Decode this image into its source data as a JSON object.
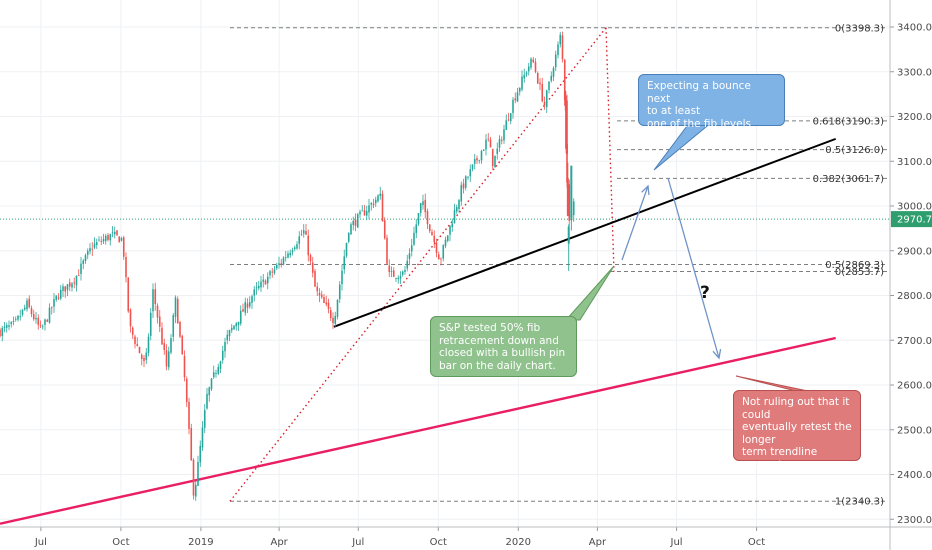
{
  "chart_data": {
    "type": "candlestick",
    "instrument": "S&P",
    "x_tick_labels": [
      "Jul",
      "Oct",
      "2019",
      "Apr",
      "Jul",
      "Oct",
      "2020",
      "Apr",
      "Jul",
      "Oct"
    ],
    "y_tick_labels": [
      "3400.0",
      "3300.0",
      "3200.0",
      "3100.0",
      "3000.0",
      "2900.0",
      "2800.0",
      "2700.0",
      "2600.0",
      "2500.0",
      "2400.0",
      "2300.0"
    ],
    "ylim": [
      2290,
      3415
    ],
    "current_price": "2970.7",
    "fib_levels": [
      {
        "label": "0(3398.3)",
        "value": 3398.3
      },
      {
        "label": "0.618(3190.3)",
        "value": 3190.3
      },
      {
        "label": "0.5(3126.0)",
        "value": 3126.0
      },
      {
        "label": "0.382(3061.7)",
        "value": 3061.7
      },
      {
        "label": "0.5(2869.3)",
        "value": 2869.3
      },
      {
        "label": "0(2853.7)",
        "value": 2853.7
      },
      {
        "label": "1(2340.3)",
        "value": 2340.3
      }
    ],
    "price_path": [
      {
        "date": "2018-05-15",
        "close": 2720
      },
      {
        "date": "2018-06-01",
        "close": 2735
      },
      {
        "date": "2018-06-15",
        "close": 2780
      },
      {
        "date": "2018-07-01",
        "close": 2720
      },
      {
        "date": "2018-07-20",
        "close": 2800
      },
      {
        "date": "2018-08-10",
        "close": 2840
      },
      {
        "date": "2018-08-29",
        "close": 2910
      },
      {
        "date": "2018-09-20",
        "close": 2935
      },
      {
        "date": "2018-10-03",
        "close": 2925
      },
      {
        "date": "2018-10-11",
        "close": 2730
      },
      {
        "date": "2018-10-29",
        "close": 2640
      },
      {
        "date": "2018-11-07",
        "close": 2810
      },
      {
        "date": "2018-11-23",
        "close": 2635
      },
      {
        "date": "2018-12-03",
        "close": 2790
      },
      {
        "date": "2018-12-14",
        "close": 2600
      },
      {
        "date": "2018-12-24",
        "close": 2351
      },
      {
        "date": "2019-01-08",
        "close": 2575
      },
      {
        "date": "2019-02-01",
        "close": 2710
      },
      {
        "date": "2019-03-01",
        "close": 2800
      },
      {
        "date": "2019-04-01",
        "close": 2870
      },
      {
        "date": "2019-04-30",
        "close": 2945
      },
      {
        "date": "2019-05-13",
        "close": 2810
      },
      {
        "date": "2019-06-03",
        "close": 2745
      },
      {
        "date": "2019-06-20",
        "close": 2950
      },
      {
        "date": "2019-07-26",
        "close": 3025
      },
      {
        "date": "2019-08-05",
        "close": 2845
      },
      {
        "date": "2019-08-23",
        "close": 2850
      },
      {
        "date": "2019-09-12",
        "close": 3010
      },
      {
        "date": "2019-10-03",
        "close": 2880
      },
      {
        "date": "2019-10-28",
        "close": 3040
      },
      {
        "date": "2019-11-27",
        "close": 3150
      },
      {
        "date": "2019-12-03",
        "close": 3095
      },
      {
        "date": "2019-12-27",
        "close": 3240
      },
      {
        "date": "2020-01-17",
        "close": 3330
      },
      {
        "date": "2020-01-31",
        "close": 3225
      },
      {
        "date": "2020-02-19",
        "close": 3386
      },
      {
        "date": "2020-02-24",
        "close": 3225
      },
      {
        "date": "2020-02-27",
        "close": 2978
      },
      {
        "date": "2020-02-28",
        "close": 2954
      },
      {
        "date": "2020-03-03",
        "close": 3003
      },
      {
        "date": "2020-03-05",
        "close": 3023
      },
      {
        "date": "2020-03-06",
        "close": 2972
      }
    ],
    "trendlines": [
      {
        "id": "black-trendline",
        "color": "#000000",
        "from": {
          "date": "2019-06-03",
          "price": 2730
        },
        "to": {
          "date": "2020-12-31",
          "price": 3150
        }
      },
      {
        "id": "pink-trendline",
        "color": "#e91e63",
        "from": {
          "date": "2018-05-15",
          "price": 2290
        },
        "to": {
          "date": "2020-12-31",
          "price": 2705
        }
      }
    ],
    "colors": {
      "up": "#26a69a",
      "down": "#ef5350",
      "ink": "#333333",
      "arrow": "#6f93c7",
      "pink": "#e91e63",
      "dotted": "#d61f26"
    }
  },
  "annotations": {
    "bounce": "Expecting a bounce next\nto at least\none of the fib levels",
    "sp_test": "S&P tested 50% fib\nretracement down and\nclosed with a bullish pin\nbar on the daily chart.",
    "retest": "Not ruling out that it\ncould\neventually retest the\nlonger\nterm trendline support",
    "question": "?"
  }
}
